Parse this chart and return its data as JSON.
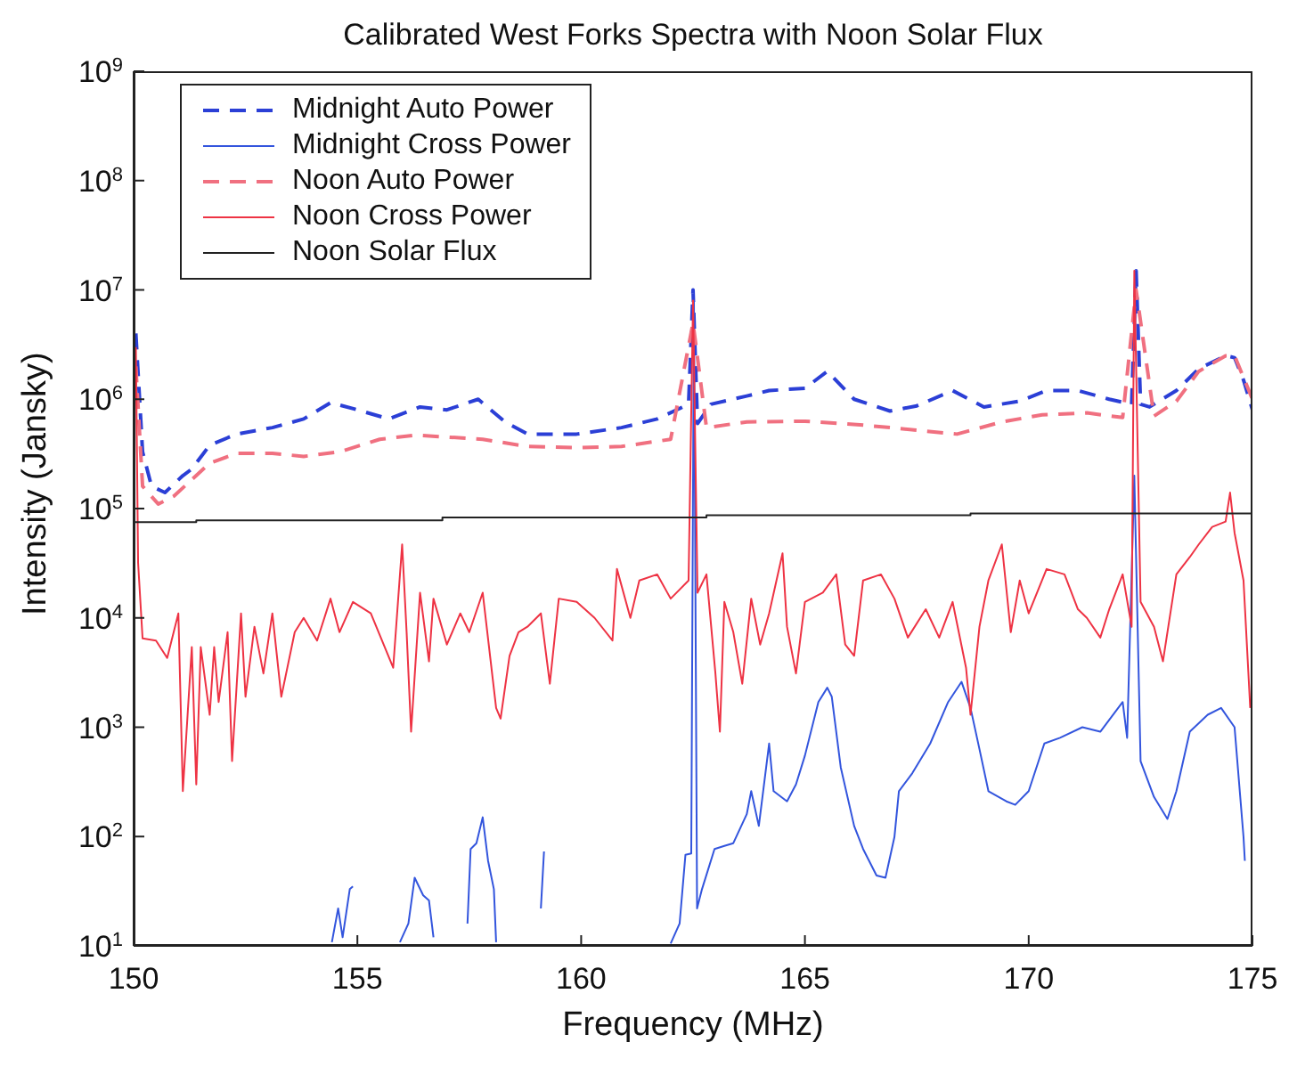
{
  "chart_data": {
    "type": "line",
    "title": "Calibrated West Forks Spectra with Noon Solar Flux",
    "xlabel": "Frequency (MHz)",
    "ylabel": "Intensity (Jansky)",
    "log": "y",
    "grid": false,
    "legend": "top left",
    "marker": "none",
    "xlim": [
      150,
      175
    ],
    "xticks": [
      150,
      155,
      160,
      165,
      170,
      175
    ],
    "ylim": [
      10,
      1000000000
    ],
    "yticks": [
      {
        "value": 10,
        "label": "10$^{1}$"
      },
      {
        "value": 100,
        "label": "10$^{2}$"
      },
      {
        "value": 1000,
        "label": "10$^{3}$"
      },
      {
        "value": 10000,
        "label": "10$^{4}$"
      },
      {
        "value": 100000,
        "label": "10$^{5}$"
      },
      {
        "value": 1000000,
        "label": "10$^{6}$"
      },
      {
        "value": 10000000,
        "label": "10$^{7}$"
      },
      {
        "value": 100000000,
        "label": "10$^{8}$"
      },
      {
        "value": 1000000000,
        "label": "10$^{9}$"
      }
    ],
    "series": [
      {
        "name": "Midnight Auto Power",
        "color": "#2b3fd6",
        "line_style": "dashed",
        "x": [
          150.05,
          150.2,
          150.4,
          150.7,
          151.1,
          151.3,
          151.7,
          152.3,
          153.1,
          153.8,
          154.4,
          155,
          155.7,
          156.4,
          157,
          157.7,
          158.3,
          158.8,
          159.9,
          160.9,
          161.7,
          162.4,
          162.5,
          162.6,
          162.9,
          163.7,
          164.2,
          165,
          165.5,
          166.1,
          166.9,
          167.5,
          168.3,
          169,
          169.8,
          170.4,
          171.1,
          171.8,
          172.3,
          172.4,
          172.5,
          172.7,
          173.3,
          173.8,
          174.4,
          174.6,
          174.8,
          175
        ],
        "values": [
          4000000,
          330000,
          160000,
          140000,
          200000,
          230000,
          380000,
          480000,
          550000,
          660000,
          930000,
          800000,
          660000,
          850000,
          800000,
          1000000,
          620000,
          480000,
          480000,
          550000,
          660000,
          900000,
          10000000,
          600000,
          900000,
          1070000,
          1200000,
          1260000,
          1800000,
          1000000,
          780000,
          870000,
          1200000,
          850000,
          960000,
          1200000,
          1200000,
          1000000,
          900000,
          15000000,
          900000,
          850000,
          1200000,
          1900000,
          2500000,
          2400000,
          1500000,
          800000
        ]
      },
      {
        "name": "Midnight Cross Power",
        "color": "#3355dd",
        "line_style": "solid",
        "x": [
          154.43,
          154.57,
          154.67,
          154.83,
          154.9,
          155.2,
          155.95,
          156.14,
          156.28,
          156.47,
          156.6,
          156.7,
          157,
          157.46,
          157.53,
          157.66,
          157.8,
          157.92,
          158.05,
          158.1,
          158.6,
          159.1,
          159.17,
          159.5,
          162,
          162.2,
          162.33,
          162.46,
          162.52,
          162.59,
          162.7,
          162.98,
          163.2,
          163.4,
          163.7,
          163.8,
          163.97,
          164.2,
          164.3,
          164.6,
          164.8,
          165,
          165.3,
          165.5,
          165.6,
          165.8,
          166.1,
          166.3,
          166.6,
          166.8,
          167,
          167.1,
          167.4,
          167.8,
          168.2,
          168.5,
          168.7,
          168.9,
          169.1,
          169.5,
          169.7,
          170,
          170.35,
          170.7,
          171.2,
          171.6,
          172.1,
          172.2,
          172.36,
          172.5,
          172.8,
          173.1,
          173.3,
          173.6,
          174,
          174.3,
          174.6,
          174.8,
          174.83
        ],
        "values": [
          10.8,
          22,
          12,
          33,
          35,
          null,
          10.8,
          16,
          42,
          29,
          26,
          12,
          null,
          16,
          77,
          87,
          150,
          60,
          33,
          10.8,
          null,
          22,
          73,
          null,
          10.5,
          16,
          68,
          70,
          8000000,
          22,
          33,
          77,
          82,
          87,
          160,
          260,
          125,
          710,
          260,
          210,
          300,
          550,
          1700,
          2300,
          1900,
          430,
          125,
          77,
          44,
          42,
          99,
          260,
          380,
          710,
          1700,
          2600,
          1500,
          630,
          260,
          210,
          195,
          260,
          710,
          800,
          1000,
          910,
          1700,
          800,
          200000,
          490,
          230,
          145,
          260,
          910,
          1300,
          1500,
          1000,
          99,
          60
        ]
      },
      {
        "name": "Noon Auto Power",
        "color": "#f07080",
        "line_style": "dashed",
        "x": [
          150.05,
          150.2,
          150.55,
          150.9,
          151.7,
          152.3,
          153.1,
          153.8,
          154.6,
          155.5,
          156.3,
          157.8,
          158.8,
          159.9,
          160.9,
          162,
          162.5,
          162.8,
          163.7,
          165,
          166.3,
          166.9,
          167.7,
          168.4,
          169.4,
          170.3,
          171.3,
          172.1,
          172.4,
          172.8,
          173.3,
          173.8,
          174.4,
          174.6,
          175
        ],
        "values": [
          2000000,
          160000,
          110000,
          130000,
          260000,
          320000,
          320000,
          300000,
          330000,
          430000,
          470000,
          430000,
          370000,
          360000,
          370000,
          430000,
          5000000,
          550000,
          620000,
          630000,
          580000,
          550000,
          510000,
          480000,
          620000,
          720000,
          750000,
          680000,
          10000000,
          700000,
          960000,
          1800000,
          2500000,
          2500000,
          1000000
        ]
      },
      {
        "name": "Noon Cross Power",
        "color": "#ee3344",
        "line_style": "solid",
        "x": [
          150.05,
          150.1,
          150.2,
          150.5,
          150.75,
          151,
          151.1,
          151.3,
          151.4,
          151.5,
          151.7,
          151.8,
          151.9,
          152.1,
          152.2,
          152.4,
          152.5,
          152.7,
          152.9,
          153.1,
          153.3,
          153.6,
          153.8,
          154.1,
          154.4,
          154.6,
          154.9,
          155.3,
          155.8,
          156,
          156.1,
          156.2,
          156.4,
          156.6,
          156.7,
          157,
          157.3,
          157.5,
          157.8,
          158.1,
          158.2,
          158.4,
          158.6,
          158.8,
          159.1,
          159.3,
          159.5,
          159.9,
          160.3,
          160.7,
          160.8,
          161.1,
          161.3,
          161.7,
          162,
          162.4,
          162.5,
          162.6,
          162.8,
          163,
          163.1,
          163.2,
          163.4,
          163.6,
          163.8,
          164,
          164.2,
          164.5,
          164.6,
          164.8,
          165,
          165.4,
          165.7,
          165.9,
          166.1,
          166.3,
          166.7,
          167,
          167.3,
          167.7,
          168,
          168.3,
          168.6,
          168.7,
          168.9,
          169.1,
          169.4,
          169.6,
          169.8,
          170,
          170.4,
          170.8,
          171.1,
          171.3,
          171.6,
          171.8,
          172.1,
          172.3,
          172.36,
          172.5,
          172.8,
          173,
          173.1,
          173.3,
          173.6,
          173.8,
          174.1,
          174.4,
          174.5,
          174.6,
          174.8,
          174.95
        ],
        "values": [
          3000000,
          32000,
          6500,
          6200,
          4300,
          11000,
          260,
          5400,
          300,
          5400,
          1300,
          5400,
          1700,
          7400,
          490,
          11000,
          1900,
          8300,
          3100,
          11000,
          1900,
          7400,
          10000,
          6200,
          15000,
          7400,
          14000,
          11000,
          3500,
          47000,
          7400,
          910,
          17000,
          4000,
          15000,
          5700,
          11000,
          7400,
          17000,
          1500,
          1200,
          4500,
          7400,
          8300,
          11000,
          2500,
          15000,
          14000,
          10000,
          6200,
          28000,
          10000,
          22000,
          25000,
          15000,
          22000,
          8000000,
          17000,
          25000,
          3100,
          910,
          14000,
          7400,
          2500,
          15000,
          5700,
          11000,
          39000,
          8300,
          3100,
          14000,
          17000,
          25000,
          5700,
          4500,
          22000,
          25000,
          15000,
          6600,
          12000,
          6600,
          14000,
          3500,
          1300,
          8300,
          22000,
          47000,
          7400,
          22000,
          11000,
          28000,
          25000,
          12000,
          10000,
          6600,
          12000,
          25000,
          8300,
          15000000,
          14000,
          8300,
          4000,
          7400,
          25000,
          36000,
          47000,
          68000,
          76000,
          140000,
          60000,
          22000,
          1500
        ]
      },
      {
        "name": "Noon Solar Flux",
        "color": "#222222",
        "line_style": "solid",
        "x": [
          150,
          151.4,
          151.4,
          156.9,
          156.9,
          162.8,
          162.8,
          168.7,
          168.7,
          175
        ],
        "values": [
          75000,
          75000,
          78000,
          78000,
          83000,
          83000,
          87000,
          87000,
          90000,
          90000
        ]
      }
    ]
  }
}
